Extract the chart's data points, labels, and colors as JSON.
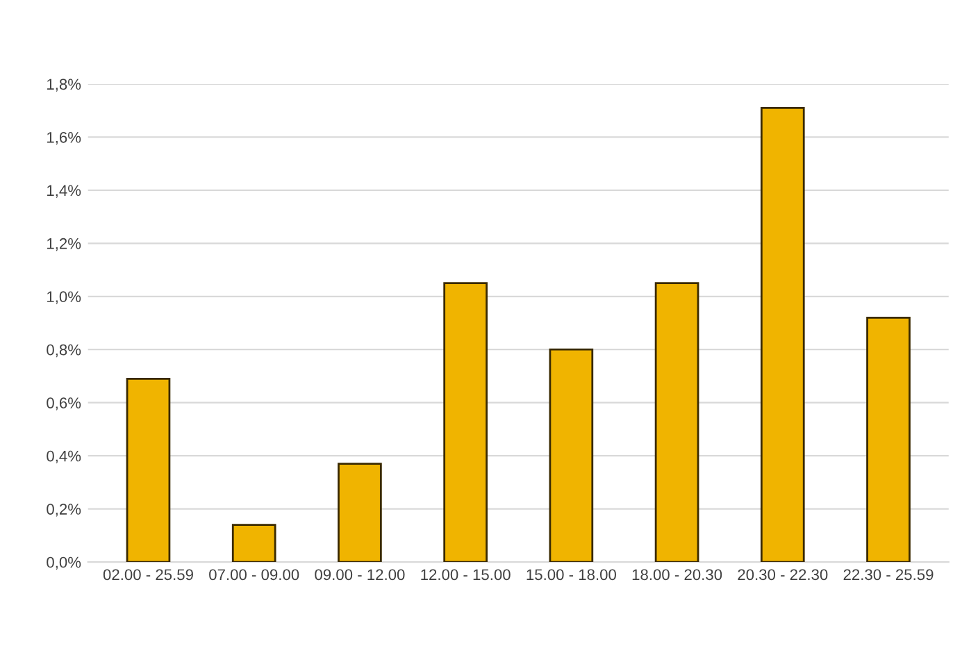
{
  "chart_data": {
    "type": "bar",
    "categories": [
      "02.00 - 25.59",
      "07.00 - 09.00",
      "09.00 - 12.00",
      "12.00 - 15.00",
      "15.00 - 18.00",
      "18.00 - 20.30",
      "20.30 - 22.30",
      "22.30 - 25.59"
    ],
    "values": [
      0.69,
      0.14,
      0.37,
      1.05,
      0.8,
      1.05,
      1.71,
      0.92
    ],
    "color": "#f0b400",
    "ylim": [
      0,
      1.8
    ],
    "yticks": [
      {
        "value": 0,
        "label": "0,0%"
      },
      {
        "value": 0.2,
        "label": "0,2%"
      },
      {
        "value": 0.4,
        "label": "0,4%"
      },
      {
        "value": 0.6,
        "label": "0,6%"
      },
      {
        "value": 0.8,
        "label": "0,8%"
      },
      {
        "value": 1.0,
        "label": "1,0%"
      },
      {
        "value": 1.2,
        "label": "1,2%"
      },
      {
        "value": 1.4,
        "label": "1,4%"
      },
      {
        "value": 1.6,
        "label": "1,6%"
      },
      {
        "value": 1.8,
        "label": "1,8%"
      }
    ],
    "grid": "y"
  }
}
